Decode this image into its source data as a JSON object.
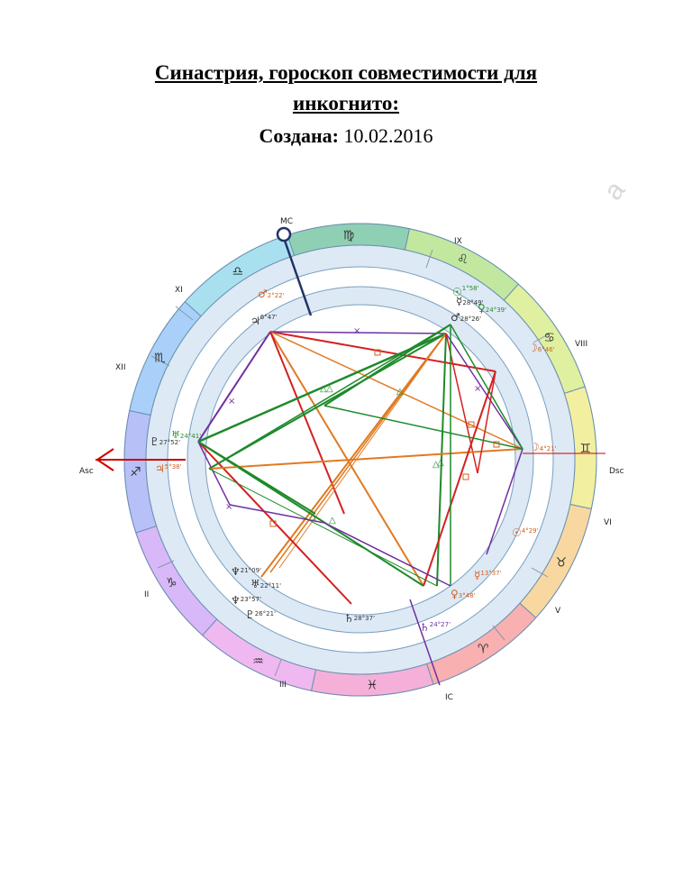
{
  "document": {
    "title_line1": "Синастрия, гороскоп совместимости для",
    "title_line2": "инкогнито:",
    "created_label": "Создана:",
    "created_value": "10.02.2016",
    "watermark": "а"
  },
  "chart": {
    "angles": {
      "mc": "MC",
      "ic": "IC",
      "asc": "Asc",
      "dsc": "Dsc"
    },
    "houses": [
      "XII",
      "XI",
      "IX",
      "VIII",
      "VI",
      "V",
      "III",
      "II"
    ],
    "signs": [
      {
        "glyph": "♍",
        "color": "#8fd0b4"
      },
      {
        "glyph": "♌",
        "color": "#c2e8a0"
      },
      {
        "glyph": "♋",
        "color": "#dff0a0"
      },
      {
        "glyph": "♊",
        "color": "#f2f0a0"
      },
      {
        "glyph": "♉",
        "color": "#f8d8a0"
      },
      {
        "glyph": "♈",
        "color": "#f8b0b0"
      },
      {
        "glyph": "♓",
        "color": "#f4b0d8"
      },
      {
        "glyph": "♒",
        "color": "#f0b8f0"
      },
      {
        "glyph": "♑",
        "color": "#d8b8f8"
      },
      {
        "glyph": "♐",
        "color": "#b8c0f8"
      },
      {
        "glyph": "♏",
        "color": "#a8d0f8"
      },
      {
        "glyph": "♎",
        "color": "#a8e0f0"
      }
    ],
    "outer_planets": [
      {
        "glyph": "♂",
        "deg": "2°22'",
        "color": "#d06020"
      },
      {
        "glyph": "☉",
        "deg": "1°58'",
        "color": "#2a8a2a"
      },
      {
        "glyph": "☿",
        "deg": "28°49'",
        "color": "#333333"
      },
      {
        "glyph": "♀",
        "deg": "24°39'",
        "color": "#2a8a2a"
      },
      {
        "glyph": "☽",
        "deg": "6°46'",
        "color": "#d06020"
      },
      {
        "glyph": "☽",
        "deg": "4°21'",
        "color": "#d06020"
      },
      {
        "glyph": "☉",
        "deg": "4°29'",
        "color": "#d06020"
      },
      {
        "glyph": "☿",
        "deg": "13°37'",
        "color": "#d06020"
      },
      {
        "glyph": "♀",
        "deg": "3°48'",
        "color": "#d06020"
      },
      {
        "glyph": "♄",
        "deg": "24°27'",
        "color": "#7030a0"
      }
    ],
    "inner_planets": [
      {
        "glyph": "♃",
        "deg": "6°47'",
        "color": "#333333"
      },
      {
        "glyph": "♂",
        "deg": "28°26'",
        "color": "#333333"
      },
      {
        "glyph": "♇",
        "deg": "27°52'",
        "color": "#333333"
      },
      {
        "glyph": "♅",
        "deg": "24°41'",
        "color": "#2a8a2a"
      },
      {
        "glyph": "♃",
        "deg": "5°38'",
        "color": "#d06020"
      },
      {
        "glyph": "♆",
        "deg": "21°09'",
        "color": "#333333"
      },
      {
        "glyph": "♅",
        "deg": "22°11'",
        "color": "#333333"
      },
      {
        "glyph": "♆",
        "deg": "23°57'",
        "color": "#333333"
      },
      {
        "glyph": "♇",
        "deg": "26°21'",
        "color": "#333333"
      },
      {
        "glyph": "♄",
        "deg": "28°37'",
        "color": "#333333"
      }
    ],
    "colors": {
      "red": "#d42020",
      "green": "#1e8a2a",
      "orange": "#e07a20",
      "purple": "#7030a0",
      "ring": "#dde9f5"
    }
  }
}
